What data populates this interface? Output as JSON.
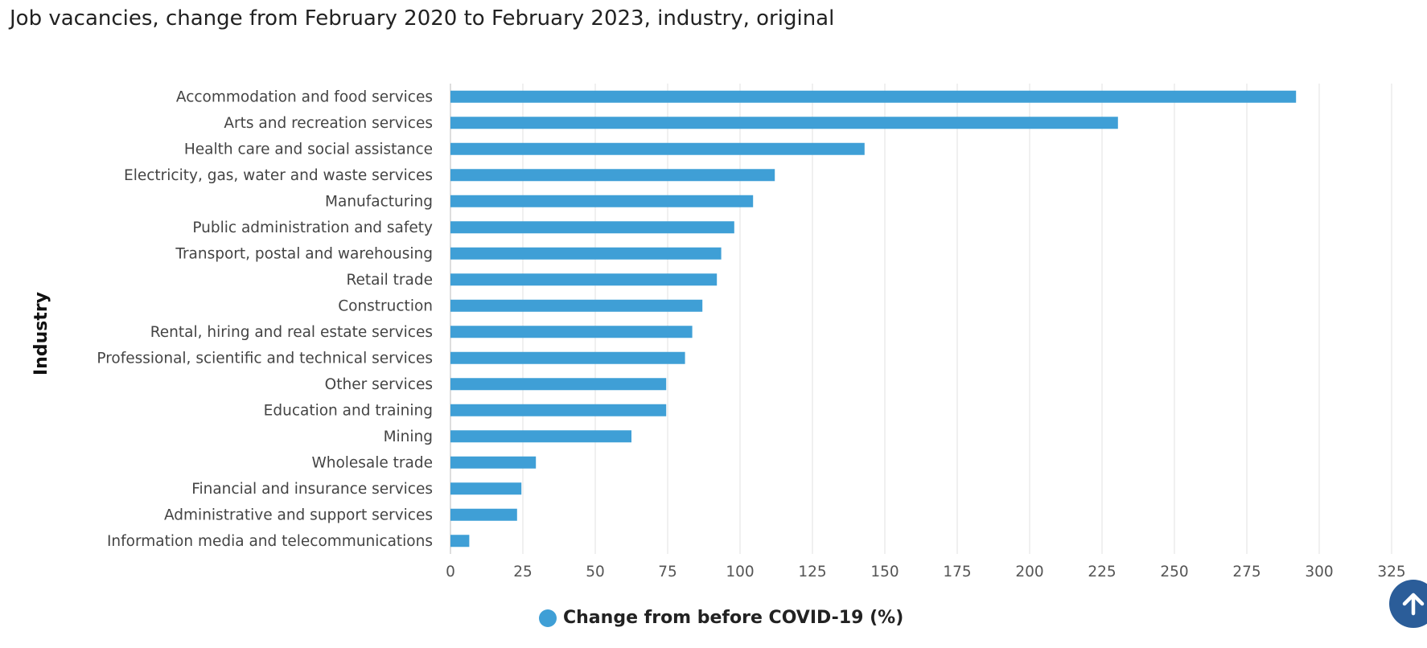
{
  "colors": {
    "bar": "#3f9fd6",
    "grid": "#e2e2e2",
    "back_to_top": "#2b5d99"
  },
  "icons": {
    "back_to_top": "arrow-up-icon"
  },
  "chart_data": {
    "type": "bar",
    "orientation": "horizontal",
    "title": "Job vacancies, change from February 2020 to February 2023, industry, original",
    "ylabel": "Industry",
    "xlabel": "",
    "xlim": [
      0,
      325
    ],
    "xticks": [
      0,
      25,
      50,
      75,
      100,
      125,
      150,
      175,
      200,
      225,
      250,
      275,
      300,
      325
    ],
    "grid": "vertical",
    "legend": "bottom",
    "categories": [
      "Accommodation and food services",
      "Arts and recreation services",
      "Health care and social assistance",
      "Electricity, gas, water and waste services",
      "Manufacturing",
      "Public administration and safety",
      "Transport, postal and warehousing",
      "Retail trade",
      "Construction",
      "Rental, hiring and real estate services",
      "Professional, scientific and technical services",
      "Other services",
      "Education and training",
      "Mining",
      "Wholesale trade",
      "Financial and insurance services",
      "Administrative and support services",
      "Information media and telecommunications"
    ],
    "series": [
      {
        "name": "Change from before COVID-19 (%)",
        "values": [
          292,
          230.5,
          143,
          112,
          104.5,
          98,
          93.5,
          92,
          87,
          83.5,
          81,
          74.5,
          74.5,
          62.5,
          29.5,
          24.5,
          23,
          6.5
        ]
      }
    ]
  }
}
